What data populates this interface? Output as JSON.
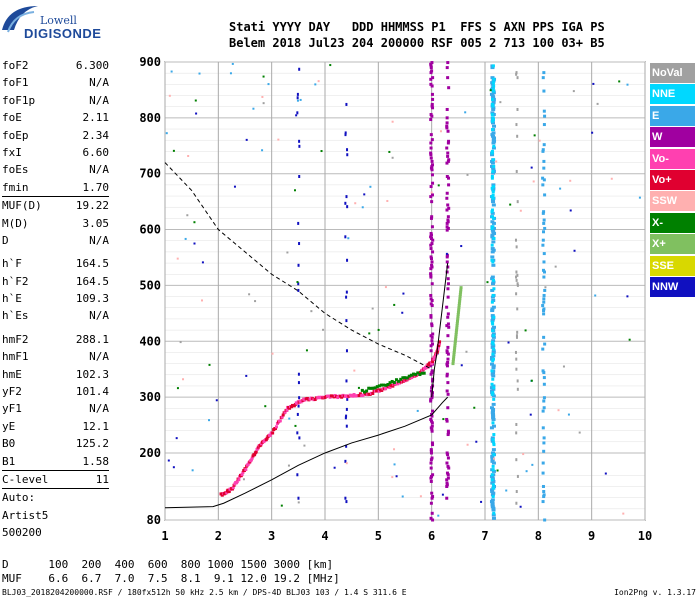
{
  "logo": {
    "line1": "Lowell",
    "line2": "DIGISONDE"
  },
  "header": {
    "line1": "Stati YYYY DAY   DDD HHMMSS P1  FFS S AXN PPS IGA PS",
    "line2": "Belem 2018 Jul23 204 200000 RSF 005 2 713 100 03+ B5"
  },
  "params": [
    {
      "label": "foF2",
      "value": "6.300"
    },
    {
      "label": "foF1",
      "value": "N/A"
    },
    {
      "label": "foF1p",
      "value": "N/A"
    },
    {
      "label": "foE",
      "value": "2.11"
    },
    {
      "label": "foEp",
      "value": "2.34"
    },
    {
      "label": "fxI",
      "value": "6.60"
    },
    {
      "label": "foEs",
      "value": "N/A"
    },
    {
      "label": "fmin",
      "value": "1.70",
      "sep": true
    },
    {
      "label": "MUF(D)",
      "value": "19.22"
    },
    {
      "label": "M(D)",
      "value": "3.05"
    },
    {
      "label": "D",
      "value": "N/A",
      "gap": true
    },
    {
      "label": "h`F",
      "value": "164.5"
    },
    {
      "label": "h`F2",
      "value": "164.5"
    },
    {
      "label": "h`E",
      "value": "109.3"
    },
    {
      "label": "h`Es",
      "value": "N/A",
      "gap": true
    },
    {
      "label": "hmF2",
      "value": "288.1"
    },
    {
      "label": "hmF1",
      "value": "N/A"
    },
    {
      "label": "hmE",
      "value": "102.3"
    },
    {
      "label": "yF2",
      "value": "101.4"
    },
    {
      "label": "yF1",
      "value": "N/A"
    },
    {
      "label": "yE",
      "value": "12.1"
    },
    {
      "label": "B0",
      "value": "125.2"
    },
    {
      "label": "B1",
      "value": "1.58",
      "sep": true
    },
    {
      "label": "C-level",
      "value": "11",
      "sep": true
    },
    {
      "label": "Auto:",
      "value": ""
    },
    {
      "label": "Artist5",
      "value": ""
    },
    {
      "label": "500200",
      "value": ""
    }
  ],
  "legend": [
    {
      "label": "NoVal",
      "color": "#a0a0a0"
    },
    {
      "label": "NNE",
      "color": "#00d8ff"
    },
    {
      "label": "E",
      "color": "#3aa8e8"
    },
    {
      "label": "W",
      "color": "#a000a0"
    },
    {
      "label": "Vo-",
      "color": "#ff40b0"
    },
    {
      "label": "Vo+",
      "color": "#e00030"
    },
    {
      "label": "SSW",
      "color": "#ffb0b0"
    },
    {
      "label": "X-",
      "color": "#008000"
    },
    {
      "label": "X+",
      "color": "#80c060"
    },
    {
      "label": "SSE",
      "color": "#d8d800"
    },
    {
      "label": "NNW",
      "color": "#1010c0"
    }
  ],
  "bottom": {
    "d_row": "D      100  200  400  600  800 1000 1500 3000 [km]",
    "muf_row": "MUF    6.6  6.7  7.0  7.5  8.1  9.1 12.0 19.2 [MHz]"
  },
  "footer": {
    "text": "BLJ03_2018204200000.RSF / 180fx512h 50 kHz 2.5 km / DPS-4D BLJ03 103 / 1.4 S 311.6 E",
    "version": "Ion2Png v. 1.3.17"
  },
  "chart_data": {
    "type": "scatter",
    "x_ticks": [
      1,
      2,
      3,
      4,
      5,
      6,
      7,
      8,
      9,
      10
    ],
    "y_ticks": [
      80,
      200,
      300,
      400,
      500,
      600,
      700,
      800,
      900
    ],
    "xlim": [
      1,
      10
    ],
    "ylim": [
      80,
      900
    ],
    "grid": true,
    "ordinary_trace_x": [
      2.05,
      2.25,
      2.5,
      2.75,
      3.0,
      3.3,
      3.6,
      4.0,
      4.4,
      4.8,
      5.2,
      5.5,
      5.8,
      6.0,
      6.1,
      6.15
    ],
    "ordinary_trace_y": [
      125,
      135,
      170,
      210,
      235,
      280,
      295,
      300,
      302,
      305,
      318,
      330,
      345,
      362,
      380,
      400
    ],
    "profile_curve_x": [
      1.0,
      1.5,
      1.9,
      2.1,
      2.5,
      3.0,
      3.5,
      4.0,
      4.5,
      5.0,
      5.5,
      6.0,
      6.2,
      6.3
    ],
    "profile_curve_y": [
      102,
      103,
      104,
      110,
      128,
      152,
      178,
      200,
      218,
      232,
      248,
      268,
      290,
      300
    ],
    "muf_curve_x": [
      1.0,
      1.5,
      2.0,
      2.5,
      3.0,
      3.5,
      4.0,
      4.5,
      5.0,
      5.5,
      6.0
    ],
    "muf_curve_y": [
      720,
      670,
      600,
      560,
      520,
      490,
      450,
      420,
      395,
      375,
      350
    ],
    "profile_top_x": [
      6.0,
      6.05,
      6.1,
      6.15,
      6.2,
      6.25,
      6.3
    ],
    "profile_top_y": [
      300,
      350,
      380,
      420,
      460,
      500,
      540
    ]
  }
}
